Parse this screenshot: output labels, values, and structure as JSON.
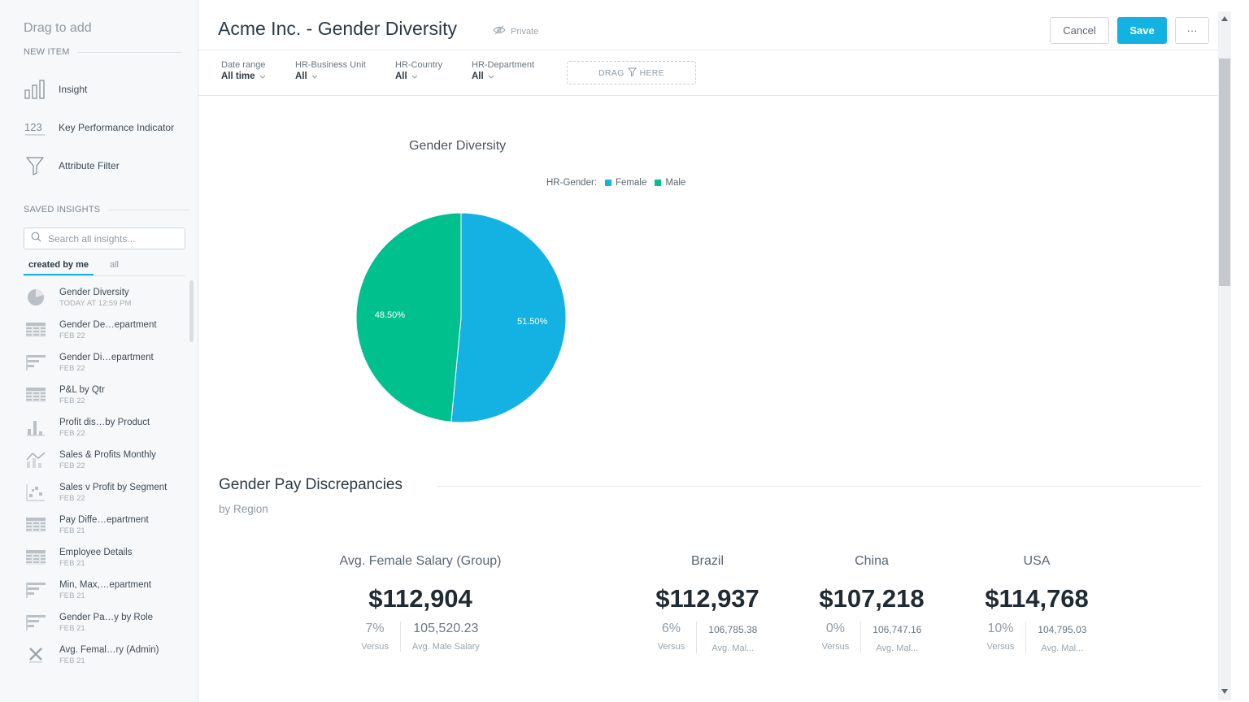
{
  "sidebar": {
    "title": "Drag to add",
    "new_item_heading": "NEW ITEM",
    "new_items": [
      {
        "label": "Insight",
        "icon": "bar-chart-icon"
      },
      {
        "label": "Key Performance Indicator",
        "icon": "kpi-123-icon"
      },
      {
        "label": "Attribute Filter",
        "icon": "funnel-icon"
      }
    ],
    "saved_heading": "SAVED INSIGHTS",
    "search_placeholder": "Search all insights...",
    "tabs": {
      "created_by_me": "created by me",
      "all": "all"
    },
    "insights": [
      {
        "name": "Gender Diversity",
        "date": "TODAY AT 12:59 PM",
        "icon": "pie-chart-icon"
      },
      {
        "name": "Gender De…epartment",
        "date": "FEB 22",
        "icon": "table-icon"
      },
      {
        "name": "Gender Di…epartment",
        "date": "FEB 22",
        "icon": "horizontal-bar-icon"
      },
      {
        "name": "P&L by Qtr",
        "date": "FEB 22",
        "icon": "table-icon"
      },
      {
        "name": "Profit dis…by Product",
        "date": "FEB 22",
        "icon": "column-chart-icon"
      },
      {
        "name": "Sales & Profits Monthly",
        "date": "FEB 22",
        "icon": "combo-chart-icon"
      },
      {
        "name": "Sales v Profit by Segment",
        "date": "FEB 22",
        "icon": "scatter-icon"
      },
      {
        "name": "Pay Diffe…epartment",
        "date": "FEB 21",
        "icon": "table-icon"
      },
      {
        "name": "Employee Details",
        "date": "FEB 21",
        "icon": "table-icon"
      },
      {
        "name": "Min, Max,…epartment",
        "date": "FEB 21",
        "icon": "horizontal-bar-icon"
      },
      {
        "name": "Gender Pa…y by Role",
        "date": "FEB 21",
        "icon": "horizontal-bar-icon"
      },
      {
        "name": "Avg. Femal…ry (Admin)",
        "date": "FEB 21",
        "icon": "headline-x-icon"
      }
    ]
  },
  "header": {
    "title": "Acme Inc. - Gender Diversity",
    "visibility": "Private",
    "cancel_label": "Cancel",
    "save_label": "Save",
    "more_label": "···"
  },
  "filters": [
    {
      "name": "Date range",
      "value": "All time"
    },
    {
      "name": "HR-Business Unit",
      "value": "All"
    },
    {
      "name": "HR-Country",
      "value": "All"
    },
    {
      "name": "HR-Department",
      "value": "All"
    }
  ],
  "drag_zone": {
    "left": "DRAG",
    "right": "HERE"
  },
  "colors": {
    "female": "#14b2e2",
    "male": "#00c18d",
    "accent": "#14b2e2"
  },
  "chart_data": {
    "type": "pie",
    "title": "Gender Diversity",
    "legend_title": "HR-Gender:",
    "legend_position": "top",
    "categories": [
      "Female",
      "Male"
    ],
    "values": [
      51.5,
      48.5
    ],
    "labels": [
      "51.50%",
      "48.50%"
    ]
  },
  "section": {
    "title": "Gender Pay Discrepancies",
    "subtitle": "by Region"
  },
  "kpis": [
    {
      "title": "Avg. Female Salary (Group)",
      "value": "$112,904",
      "pct": "7%",
      "pct_caption": "Versus",
      "prev": "105,520.23",
      "prev_caption": "Avg. Male Salary"
    },
    {
      "title": "Brazil",
      "value": "$112,937",
      "pct": "6%",
      "pct_caption": "Versus",
      "prev": "106,785.38",
      "prev_caption": "Avg. Mal..."
    },
    {
      "title": "China",
      "value": "$107,218",
      "pct": "0%",
      "pct_caption": "Versus",
      "prev": "106,747.16",
      "prev_caption": "Avg. Mal..."
    },
    {
      "title": "USA",
      "value": "$114,768",
      "pct": "10%",
      "pct_caption": "Versus",
      "prev": "104,795.03",
      "prev_caption": "Avg. Mal..."
    }
  ]
}
